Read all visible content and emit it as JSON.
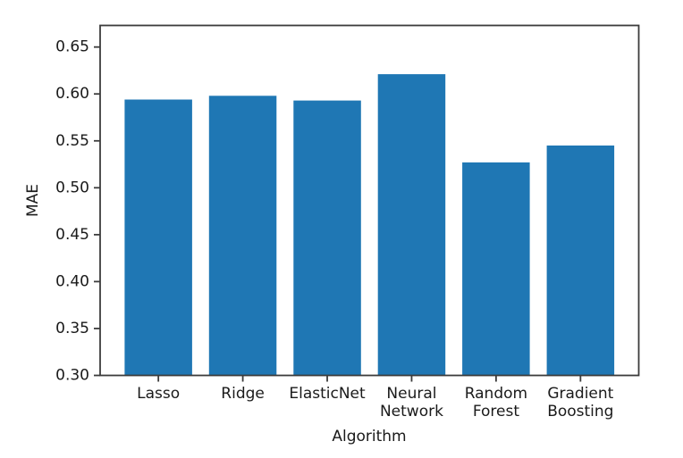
{
  "chart_data": {
    "type": "bar",
    "title": "",
    "xlabel": "Algorithm",
    "ylabel": "MAE",
    "categories": [
      "Lasso",
      "Ridge",
      "ElasticNet",
      "Neural Network",
      "Random Forest",
      "Gradient Boosting"
    ],
    "category_label_lines": [
      [
        "Lasso"
      ],
      [
        "Ridge"
      ],
      [
        "ElasticNet"
      ],
      [
        "Neural",
        "Network"
      ],
      [
        "Random",
        "Forest"
      ],
      [
        "Gradient",
        "Boosting"
      ]
    ],
    "values": [
      0.594,
      0.598,
      0.593,
      0.621,
      0.527,
      0.545
    ],
    "ylim": [
      0.3,
      0.673
    ],
    "xlim": [
      -0.69,
      5.69
    ],
    "yticks": [
      0.3,
      0.35,
      0.4,
      0.45,
      0.5,
      0.55,
      0.6,
      0.65
    ],
    "ytick_labels": [
      "0.30",
      "0.35",
      "0.40",
      "0.45",
      "0.50",
      "0.55",
      "0.60",
      "0.65"
    ],
    "bar_color": "#1f77b4",
    "bar_width_fraction": 0.8,
    "spine_color": "#3c3c3c",
    "grid": false,
    "legend": "none"
  }
}
